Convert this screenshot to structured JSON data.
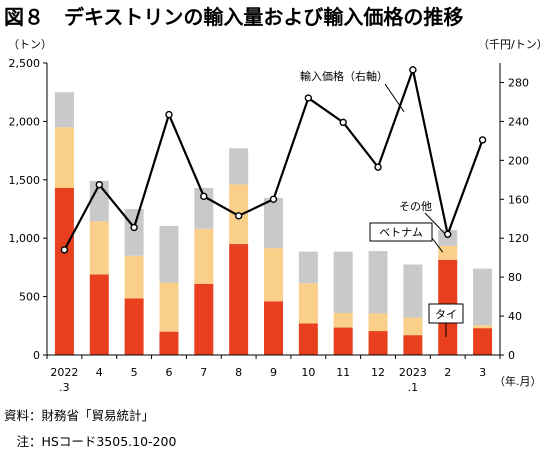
{
  "title": "図８　デキストリンの輸入量および輸入価格の推移",
  "notes": {
    "source": "資料：財務省「貿易統計」",
    "note": "　注：HSコード3505.10-200"
  },
  "colors": {
    "tai": "#e8401f",
    "vietnam": "#f9cf8a",
    "other": "#c9c9c9",
    "price_line": "#000000",
    "grid": "#d9d9d9"
  },
  "chart_data": {
    "type": "bar",
    "stacked": true,
    "categories": [
      "2022\n.3",
      "4",
      "5",
      "6",
      "7",
      "8",
      "9",
      "10",
      "11",
      "12",
      "2023\n.1",
      "2",
      "3"
    ],
    "xlabel": "（年.月）",
    "ylabel_left": "（トン）",
    "ylabel_right": "（千円/トン）",
    "ylim": [
      0,
      2500
    ],
    "y_ticks": [
      0,
      500,
      1000,
      1500,
      2000,
      2500
    ],
    "y_tick_labels": [
      "0",
      "500",
      "1,000",
      "1,500",
      "2,000",
      "2,500"
    ],
    "y2lim": [
      0,
      300
    ],
    "y2_ticks": [
      0,
      40,
      80,
      120,
      160,
      200,
      240,
      280
    ],
    "grid": false,
    "series": [
      {
        "name": "タイ",
        "values": [
          1430,
          690,
          485,
          200,
          610,
          950,
          460,
          270,
          235,
          205,
          170,
          815,
          230
        ]
      },
      {
        "name": "ベトナム",
        "values": [
          520,
          455,
          365,
          420,
          470,
          510,
          455,
          345,
          125,
          150,
          150,
          120,
          25
        ]
      },
      {
        "name": "その他",
        "values": [
          300,
          345,
          400,
          485,
          350,
          310,
          430,
          270,
          525,
          535,
          455,
          135,
          485
        ]
      }
    ],
    "line_series": {
      "name": "輸入価格（右軸）",
      "axis": "right",
      "values": [
        108,
        175,
        131,
        247,
        163,
        143,
        160,
        264,
        239,
        193,
        293,
        124,
        221
      ]
    }
  }
}
